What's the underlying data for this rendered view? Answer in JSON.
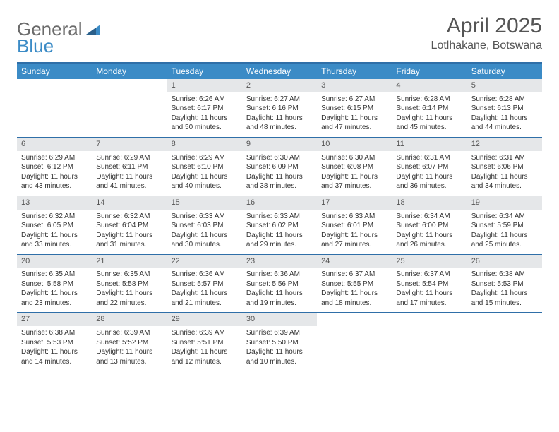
{
  "logo": {
    "part1": "General",
    "part2": "Blue"
  },
  "title": "April 2025",
  "location": "Lotlhakane, Botswana",
  "colors": {
    "header_bar": "#3b8bc6",
    "border": "#2f6fa8",
    "daynum_bg": "#e5e7e9",
    "text": "#333333",
    "title_text": "#555555"
  },
  "weekdays": [
    "Sunday",
    "Monday",
    "Tuesday",
    "Wednesday",
    "Thursday",
    "Friday",
    "Saturday"
  ],
  "weeks": [
    [
      null,
      null,
      {
        "n": "1",
        "sr": "Sunrise: 6:26 AM",
        "ss": "Sunset: 6:17 PM",
        "dl": "Daylight: 11 hours and 50 minutes."
      },
      {
        "n": "2",
        "sr": "Sunrise: 6:27 AM",
        "ss": "Sunset: 6:16 PM",
        "dl": "Daylight: 11 hours and 48 minutes."
      },
      {
        "n": "3",
        "sr": "Sunrise: 6:27 AM",
        "ss": "Sunset: 6:15 PM",
        "dl": "Daylight: 11 hours and 47 minutes."
      },
      {
        "n": "4",
        "sr": "Sunrise: 6:28 AM",
        "ss": "Sunset: 6:14 PM",
        "dl": "Daylight: 11 hours and 45 minutes."
      },
      {
        "n": "5",
        "sr": "Sunrise: 6:28 AM",
        "ss": "Sunset: 6:13 PM",
        "dl": "Daylight: 11 hours and 44 minutes."
      }
    ],
    [
      {
        "n": "6",
        "sr": "Sunrise: 6:29 AM",
        "ss": "Sunset: 6:12 PM",
        "dl": "Daylight: 11 hours and 43 minutes."
      },
      {
        "n": "7",
        "sr": "Sunrise: 6:29 AM",
        "ss": "Sunset: 6:11 PM",
        "dl": "Daylight: 11 hours and 41 minutes."
      },
      {
        "n": "8",
        "sr": "Sunrise: 6:29 AM",
        "ss": "Sunset: 6:10 PM",
        "dl": "Daylight: 11 hours and 40 minutes."
      },
      {
        "n": "9",
        "sr": "Sunrise: 6:30 AM",
        "ss": "Sunset: 6:09 PM",
        "dl": "Daylight: 11 hours and 38 minutes."
      },
      {
        "n": "10",
        "sr": "Sunrise: 6:30 AM",
        "ss": "Sunset: 6:08 PM",
        "dl": "Daylight: 11 hours and 37 minutes."
      },
      {
        "n": "11",
        "sr": "Sunrise: 6:31 AM",
        "ss": "Sunset: 6:07 PM",
        "dl": "Daylight: 11 hours and 36 minutes."
      },
      {
        "n": "12",
        "sr": "Sunrise: 6:31 AM",
        "ss": "Sunset: 6:06 PM",
        "dl": "Daylight: 11 hours and 34 minutes."
      }
    ],
    [
      {
        "n": "13",
        "sr": "Sunrise: 6:32 AM",
        "ss": "Sunset: 6:05 PM",
        "dl": "Daylight: 11 hours and 33 minutes."
      },
      {
        "n": "14",
        "sr": "Sunrise: 6:32 AM",
        "ss": "Sunset: 6:04 PM",
        "dl": "Daylight: 11 hours and 31 minutes."
      },
      {
        "n": "15",
        "sr": "Sunrise: 6:33 AM",
        "ss": "Sunset: 6:03 PM",
        "dl": "Daylight: 11 hours and 30 minutes."
      },
      {
        "n": "16",
        "sr": "Sunrise: 6:33 AM",
        "ss": "Sunset: 6:02 PM",
        "dl": "Daylight: 11 hours and 29 minutes."
      },
      {
        "n": "17",
        "sr": "Sunrise: 6:33 AM",
        "ss": "Sunset: 6:01 PM",
        "dl": "Daylight: 11 hours and 27 minutes."
      },
      {
        "n": "18",
        "sr": "Sunrise: 6:34 AM",
        "ss": "Sunset: 6:00 PM",
        "dl": "Daylight: 11 hours and 26 minutes."
      },
      {
        "n": "19",
        "sr": "Sunrise: 6:34 AM",
        "ss": "Sunset: 5:59 PM",
        "dl": "Daylight: 11 hours and 25 minutes."
      }
    ],
    [
      {
        "n": "20",
        "sr": "Sunrise: 6:35 AM",
        "ss": "Sunset: 5:58 PM",
        "dl": "Daylight: 11 hours and 23 minutes."
      },
      {
        "n": "21",
        "sr": "Sunrise: 6:35 AM",
        "ss": "Sunset: 5:58 PM",
        "dl": "Daylight: 11 hours and 22 minutes."
      },
      {
        "n": "22",
        "sr": "Sunrise: 6:36 AM",
        "ss": "Sunset: 5:57 PM",
        "dl": "Daylight: 11 hours and 21 minutes."
      },
      {
        "n": "23",
        "sr": "Sunrise: 6:36 AM",
        "ss": "Sunset: 5:56 PM",
        "dl": "Daylight: 11 hours and 19 minutes."
      },
      {
        "n": "24",
        "sr": "Sunrise: 6:37 AM",
        "ss": "Sunset: 5:55 PM",
        "dl": "Daylight: 11 hours and 18 minutes."
      },
      {
        "n": "25",
        "sr": "Sunrise: 6:37 AM",
        "ss": "Sunset: 5:54 PM",
        "dl": "Daylight: 11 hours and 17 minutes."
      },
      {
        "n": "26",
        "sr": "Sunrise: 6:38 AM",
        "ss": "Sunset: 5:53 PM",
        "dl": "Daylight: 11 hours and 15 minutes."
      }
    ],
    [
      {
        "n": "27",
        "sr": "Sunrise: 6:38 AM",
        "ss": "Sunset: 5:53 PM",
        "dl": "Daylight: 11 hours and 14 minutes."
      },
      {
        "n": "28",
        "sr": "Sunrise: 6:39 AM",
        "ss": "Sunset: 5:52 PM",
        "dl": "Daylight: 11 hours and 13 minutes."
      },
      {
        "n": "29",
        "sr": "Sunrise: 6:39 AM",
        "ss": "Sunset: 5:51 PM",
        "dl": "Daylight: 11 hours and 12 minutes."
      },
      {
        "n": "30",
        "sr": "Sunrise: 6:39 AM",
        "ss": "Sunset: 5:50 PM",
        "dl": "Daylight: 11 hours and 10 minutes."
      },
      null,
      null,
      null
    ]
  ]
}
